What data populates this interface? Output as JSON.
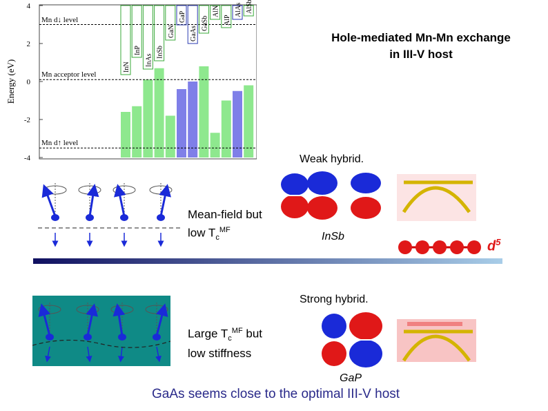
{
  "band_chart": {
    "ylabel": "Energy (eV)",
    "yticks": [
      "4",
      "2",
      "0",
      "-2",
      "-4"
    ],
    "level_labels": {
      "mn_d_down": "Mn d↓ level",
      "acceptor": "Mn acceptor level",
      "mn_d_up": "Mn d↑ level"
    },
    "compounds": [
      "InN",
      "InP",
      "InAs",
      "InSb",
      "GaN",
      "GaP",
      "GaAs",
      "GaSb",
      "AlN",
      "AlP",
      "AlAs",
      "AlSb"
    ]
  },
  "chart_data": {
    "type": "bar",
    "categories": [
      "InN",
      "InP",
      "InAs",
      "InSb",
      "GaN",
      "GaP",
      "GaAs",
      "GaSb",
      "AlN",
      "AlP",
      "AlAs",
      "AlSb"
    ],
    "values": [
      -1.6,
      -1.3,
      0.1,
      0.7,
      -1.8,
      -0.4,
      0.0,
      0.8,
      -2.7,
      -1.0,
      -0.5,
      -0.2
    ],
    "bar_colors": [
      "#8ee88e",
      "#8ee88e",
      "#8ee88e",
      "#8ee88e",
      "#8ee88e",
      "#7f7fe8",
      "#7f7fe8",
      "#8ee88e",
      "#8ee88e",
      "#8ee88e",
      "#7f7fe8",
      "#8ee88e"
    ],
    "ylabel": "Energy (eV)",
    "ylim": [
      -4,
      4
    ],
    "reference_levels": [
      3.0,
      0.1,
      -3.5
    ]
  },
  "title": {
    "line1": "Hole-mediated Mn-Mn exchange",
    "line2": "in  III-V host"
  },
  "weak": {
    "label": "Weak hybrid.",
    "mean_field_line1": "Mean-field but",
    "mean_field_line2_prefix": "low T",
    "mean_field_sub": "c",
    "mean_field_sup": "MF",
    "material": "InSb"
  },
  "d5_label": "d",
  "d5_sup": "5",
  "strong": {
    "label": "Strong hybrid.",
    "large_prefix": "Large T",
    "large_sub": "c",
    "large_sup": "MF",
    "large_suffix": " but",
    "low_stiffness": "low stiffness",
    "material": "GaP"
  },
  "conclusion": "GaAs seems close to the optimal III-V host",
  "colors": {
    "green_bar": "#8ee88e",
    "blue_bar": "#7f7fe8",
    "orbital_red": "#e01818",
    "orbital_blue": "#1a2ad8",
    "teal_panel": "#0f8a86",
    "band_gold": "#d4b400",
    "conclusion_text": "#2a2a8a",
    "divider_dark": "#101060"
  }
}
